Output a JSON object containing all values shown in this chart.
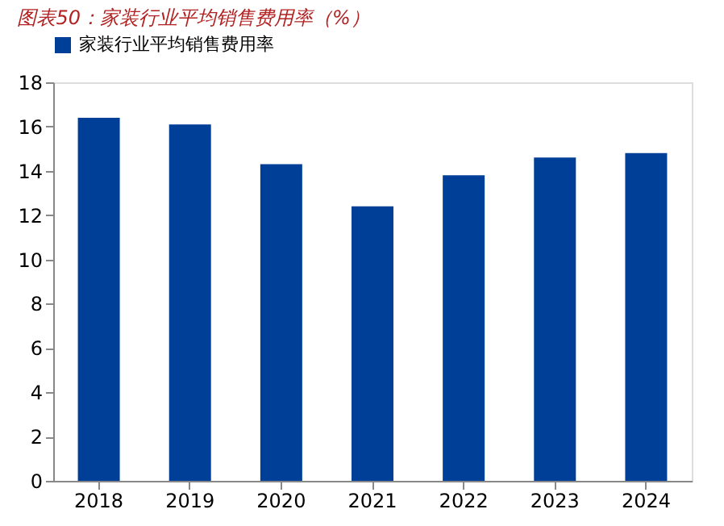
{
  "chart_data": {
    "type": "bar",
    "title": "图表50：家装行业平均销售费用率（%）",
    "categories": [
      "2018",
      "2019",
      "2020",
      "2021",
      "2022",
      "2023",
      "2024"
    ],
    "series": [
      {
        "name": "家装行业平均销售费用率",
        "color": "#003f98",
        "values": [
          16.4,
          16.1,
          14.3,
          12.4,
          13.8,
          14.6,
          14.8
        ]
      }
    ],
    "ylim": [
      0,
      18
    ],
    "yticks": [
      0,
      2,
      4,
      6,
      8,
      10,
      12,
      14,
      16,
      18
    ],
    "grid": false,
    "legend": "top"
  }
}
